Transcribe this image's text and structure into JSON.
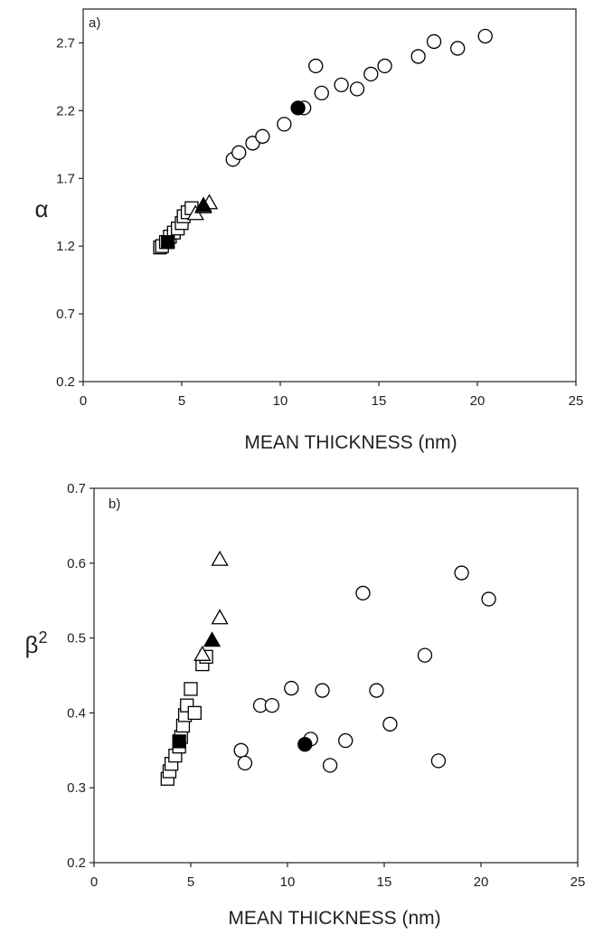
{
  "chart_data": [
    {
      "type": "scatter",
      "panel_label": "a)",
      "xlabel": "MEAN THICKNESS (nm)",
      "ylabel": "α",
      "ylabel_sup": "",
      "xlim": [
        0,
        25
      ],
      "ylim": [
        0.2,
        2.95
      ],
      "xticks": [
        "0",
        "5",
        "10",
        "15",
        "20",
        "25"
      ],
      "yticks": [
        "0.2",
        "0.7",
        "1.2",
        "1.7",
        "2.2",
        "2.7"
      ],
      "grid": false,
      "series": [
        {
          "marker": "open-square",
          "points": [
            [
              3.9,
              1.19
            ],
            [
              4.0,
              1.2
            ],
            [
              4.2,
              1.23
            ],
            [
              4.4,
              1.27
            ],
            [
              4.6,
              1.3
            ],
            [
              4.8,
              1.33
            ],
            [
              5.0,
              1.37
            ],
            [
              5.1,
              1.42
            ],
            [
              5.3,
              1.45
            ],
            [
              5.5,
              1.48
            ]
          ]
        },
        {
          "marker": "filled-square",
          "points": [
            [
              4.3,
              1.23
            ]
          ]
        },
        {
          "marker": "open-triangle",
          "points": [
            [
              5.7,
              1.44
            ],
            [
              6.1,
              1.49
            ],
            [
              6.4,
              1.52
            ]
          ]
        },
        {
          "marker": "filled-triangle",
          "points": [
            [
              6.1,
              1.5
            ]
          ]
        },
        {
          "marker": "open-circle",
          "points": [
            [
              7.6,
              1.84
            ],
            [
              7.9,
              1.89
            ],
            [
              8.6,
              1.96
            ],
            [
              9.1,
              2.01
            ],
            [
              10.2,
              2.1
            ],
            [
              11.2,
              2.22
            ],
            [
              11.8,
              2.53
            ],
            [
              12.1,
              2.33
            ],
            [
              13.1,
              2.39
            ],
            [
              13.9,
              2.36
            ],
            [
              14.6,
              2.47
            ],
            [
              15.3,
              2.53
            ],
            [
              17.0,
              2.6
            ],
            [
              17.8,
              2.71
            ],
            [
              19.0,
              2.66
            ],
            [
              20.4,
              2.75
            ]
          ]
        },
        {
          "marker": "filled-circle",
          "points": [
            [
              10.9,
              2.22
            ]
          ]
        }
      ]
    },
    {
      "type": "scatter",
      "panel_label": "b)",
      "xlabel": "MEAN THICKNESS (nm)",
      "ylabel": "β",
      "ylabel_sup": "2",
      "xlim": [
        0,
        25
      ],
      "ylim": [
        0.2,
        0.7
      ],
      "xticks": [
        "0",
        "5",
        "10",
        "15",
        "20",
        "25"
      ],
      "yticks": [
        "0.2",
        "0.3",
        "0.4",
        "0.5",
        "0.6",
        "0.7"
      ],
      "grid": false,
      "series": [
        {
          "marker": "open-square",
          "points": [
            [
              3.8,
              0.312
            ],
            [
              3.9,
              0.322
            ],
            [
              4.0,
              0.332
            ],
            [
              4.2,
              0.343
            ],
            [
              4.4,
              0.355
            ],
            [
              4.5,
              0.368
            ],
            [
              4.6,
              0.383
            ],
            [
              4.7,
              0.397
            ],
            [
              4.8,
              0.41
            ],
            [
              5.0,
              0.432
            ],
            [
              5.2,
              0.4
            ],
            [
              5.6,
              0.465
            ],
            [
              5.8,
              0.475
            ]
          ]
        },
        {
          "marker": "filled-square",
          "points": [
            [
              4.4,
              0.362
            ]
          ]
        },
        {
          "marker": "open-triangle",
          "points": [
            [
              5.6,
              0.478
            ],
            [
              6.5,
              0.527
            ],
            [
              6.5,
              0.605
            ]
          ]
        },
        {
          "marker": "filled-triangle",
          "points": [
            [
              6.1,
              0.497
            ]
          ]
        },
        {
          "marker": "open-circle",
          "points": [
            [
              7.6,
              0.35
            ],
            [
              7.8,
              0.333
            ],
            [
              8.6,
              0.41
            ],
            [
              9.2,
              0.41
            ],
            [
              10.2,
              0.433
            ],
            [
              11.2,
              0.365
            ],
            [
              11.8,
              0.43
            ],
            [
              12.2,
              0.33
            ],
            [
              13.0,
              0.363
            ],
            [
              13.9,
              0.56
            ],
            [
              14.6,
              0.43
            ],
            [
              15.3,
              0.385
            ],
            [
              17.1,
              0.477
            ],
            [
              17.8,
              0.336
            ],
            [
              19.0,
              0.587
            ],
            [
              20.4,
              0.552
            ]
          ]
        },
        {
          "marker": "filled-circle",
          "points": [
            [
              10.9,
              0.358
            ]
          ]
        }
      ]
    }
  ]
}
